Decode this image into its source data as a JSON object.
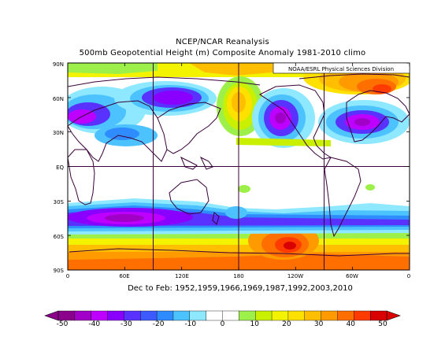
{
  "header": {
    "line1": "NCEP/NCAR Reanalysis",
    "line2": "500mb Geopotential Height (m) Composite Anomaly 1981-2010 climo"
  },
  "credit": "NOAA/ESRL Physical Sciences Division",
  "map": {
    "lat_labels": [
      "90N",
      "60N",
      "30N",
      "EQ",
      "30S",
      "60S",
      "90S"
    ],
    "lon_labels": [
      "0",
      "60E",
      "120E",
      "180",
      "120W",
      "60W",
      "0"
    ]
  },
  "footer": "Dec to Feb: 1952,1959,1966,1969,1987,1992,2003,2010",
  "colorbar": {
    "ticks": [
      "-50",
      "-40",
      "-30",
      "-20",
      "-10",
      "0",
      "10",
      "20",
      "30",
      "40",
      "50"
    ],
    "colors": [
      "#8b008b",
      "#a100c7",
      "#bd00ff",
      "#8a00ff",
      "#5a32ff",
      "#3c5aff",
      "#2f8cff",
      "#4cc2ff",
      "#8ee8ff",
      "#ffffff",
      "#ffffff",
      "#9df04a",
      "#c8f000",
      "#f3f300",
      "#ffe100",
      "#ffbf00",
      "#ff9a00",
      "#ff6f00",
      "#ff3b00",
      "#d80000"
    ]
  }
}
